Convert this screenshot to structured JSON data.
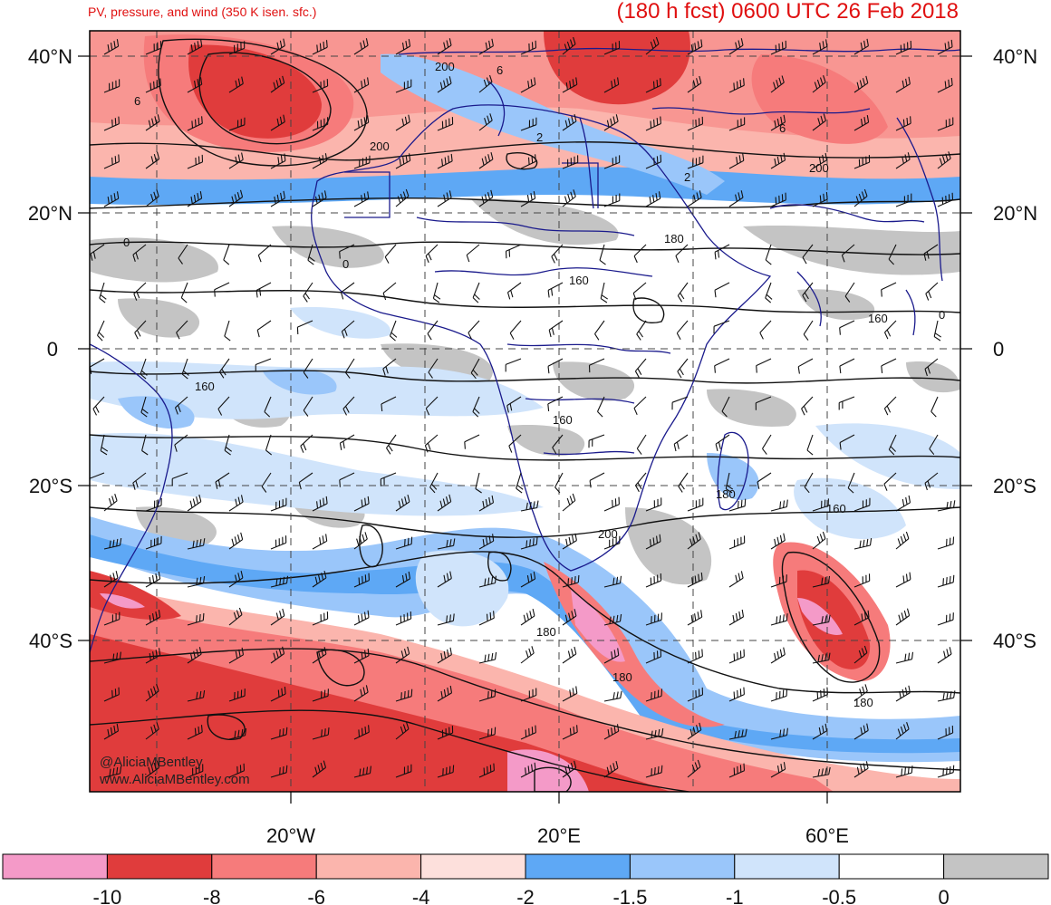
{
  "header": {
    "subtitle": "PV, pressure, and wind (350 K isen. sfc.)",
    "forecast": "(180 h fcst) 0600 UTC 26 Feb 2018"
  },
  "credits": {
    "handle": "@AliciaMBentley",
    "website": "www.AliciaMBentley.com"
  },
  "map": {
    "lat_labels": [
      "40°N",
      "20°N",
      "0",
      "20°S",
      "40°S"
    ],
    "lon_labels": [
      "20°W",
      "20°E",
      "60°E"
    ],
    "contour_labels": [
      "200",
      "200",
      "200",
      "180",
      "160",
      "160",
      "160",
      "160",
      "180",
      "160",
      "200",
      "180",
      "180",
      "180",
      "6",
      "6",
      "6",
      "2",
      "2",
      "0",
      "0",
      "0"
    ]
  },
  "colorbar": {
    "tick_labels": [
      "-10",
      "-8",
      "-6",
      "-4",
      "-2",
      "-1.5",
      "-1",
      "-0.5",
      "0"
    ],
    "colors": [
      "#f49ac8",
      "#e03c3c",
      "#f67b7b",
      "#fbb5ad",
      "#fde0dc",
      "#5ea8f5",
      "#9ac6fa",
      "#d0e4fb",
      "#ffffff",
      "#c4c4c4"
    ]
  }
}
